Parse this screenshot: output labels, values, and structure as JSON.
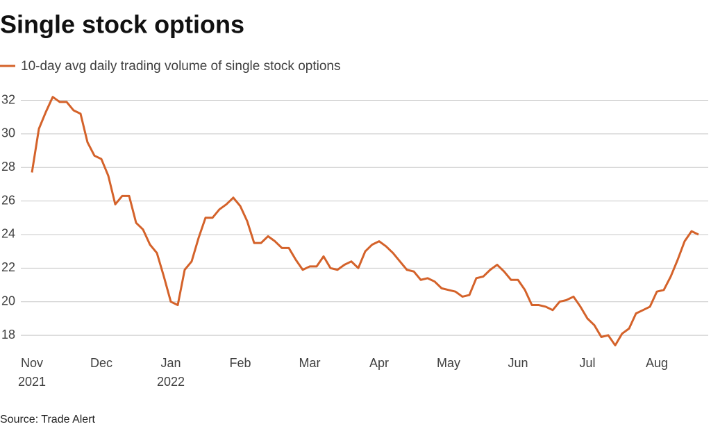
{
  "chart_data": {
    "type": "line",
    "title": "Single stock options",
    "source": "Source: Trade Alert",
    "categories": [
      "Nov\n2021",
      null,
      null,
      null,
      null,
      null,
      null,
      null,
      null,
      null,
      "Dec",
      null,
      null,
      null,
      null,
      null,
      null,
      null,
      null,
      null,
      "Jan\n2022",
      null,
      null,
      null,
      null,
      null,
      null,
      null,
      null,
      null,
      "Feb",
      null,
      null,
      null,
      null,
      null,
      null,
      null,
      null,
      null,
      "Mar",
      null,
      null,
      null,
      null,
      null,
      null,
      null,
      null,
      null,
      "Apr",
      null,
      null,
      null,
      null,
      null,
      null,
      null,
      null,
      null,
      "May",
      null,
      null,
      null,
      null,
      null,
      null,
      null,
      null,
      null,
      "Jun",
      null,
      null,
      null,
      null,
      null,
      null,
      null,
      null,
      null,
      "Jul",
      null,
      null,
      null,
      null,
      null,
      null,
      null,
      null,
      null,
      "Aug",
      null,
      null,
      null,
      null,
      null,
      null
    ],
    "series": [
      {
        "name": "10-day avg daily trading volume of single stock options",
        "color": "#d4622a",
        "values": [
          27.7,
          30.3,
          31.3,
          32.2,
          31.9,
          31.9,
          31.4,
          31.2,
          29.5,
          28.7,
          28.5,
          27.5,
          25.8,
          26.3,
          26.3,
          24.7,
          24.3,
          23.4,
          22.9,
          21.5,
          20.0,
          19.8,
          21.9,
          22.4,
          23.8,
          25.0,
          25.0,
          25.5,
          25.8,
          26.2,
          25.7,
          24.8,
          23.5,
          23.5,
          23.9,
          23.6,
          23.2,
          23.2,
          22.5,
          21.9,
          22.1,
          22.1,
          22.7,
          22.0,
          21.9,
          22.2,
          22.4,
          22.0,
          23.0,
          23.4,
          23.6,
          23.3,
          22.9,
          22.4,
          21.9,
          21.8,
          21.3,
          21.4,
          21.2,
          20.8,
          20.7,
          20.6,
          20.3,
          20.4,
          21.4,
          21.5,
          21.9,
          22.2,
          21.8,
          21.3,
          21.3,
          20.7,
          19.8,
          19.8,
          19.7,
          19.5,
          20.0,
          20.1,
          20.3,
          19.7,
          19.0,
          18.6,
          17.9,
          18.0,
          17.4,
          18.1,
          18.4,
          19.3,
          19.5,
          19.7,
          20.6,
          20.7,
          21.5,
          22.5,
          23.6,
          24.2,
          24.0
        ]
      }
    ],
    "ylim": [
      17.3,
      32.6
    ],
    "yticks": [
      18,
      20,
      22,
      24,
      26,
      28,
      30,
      32
    ],
    "grid": true
  }
}
